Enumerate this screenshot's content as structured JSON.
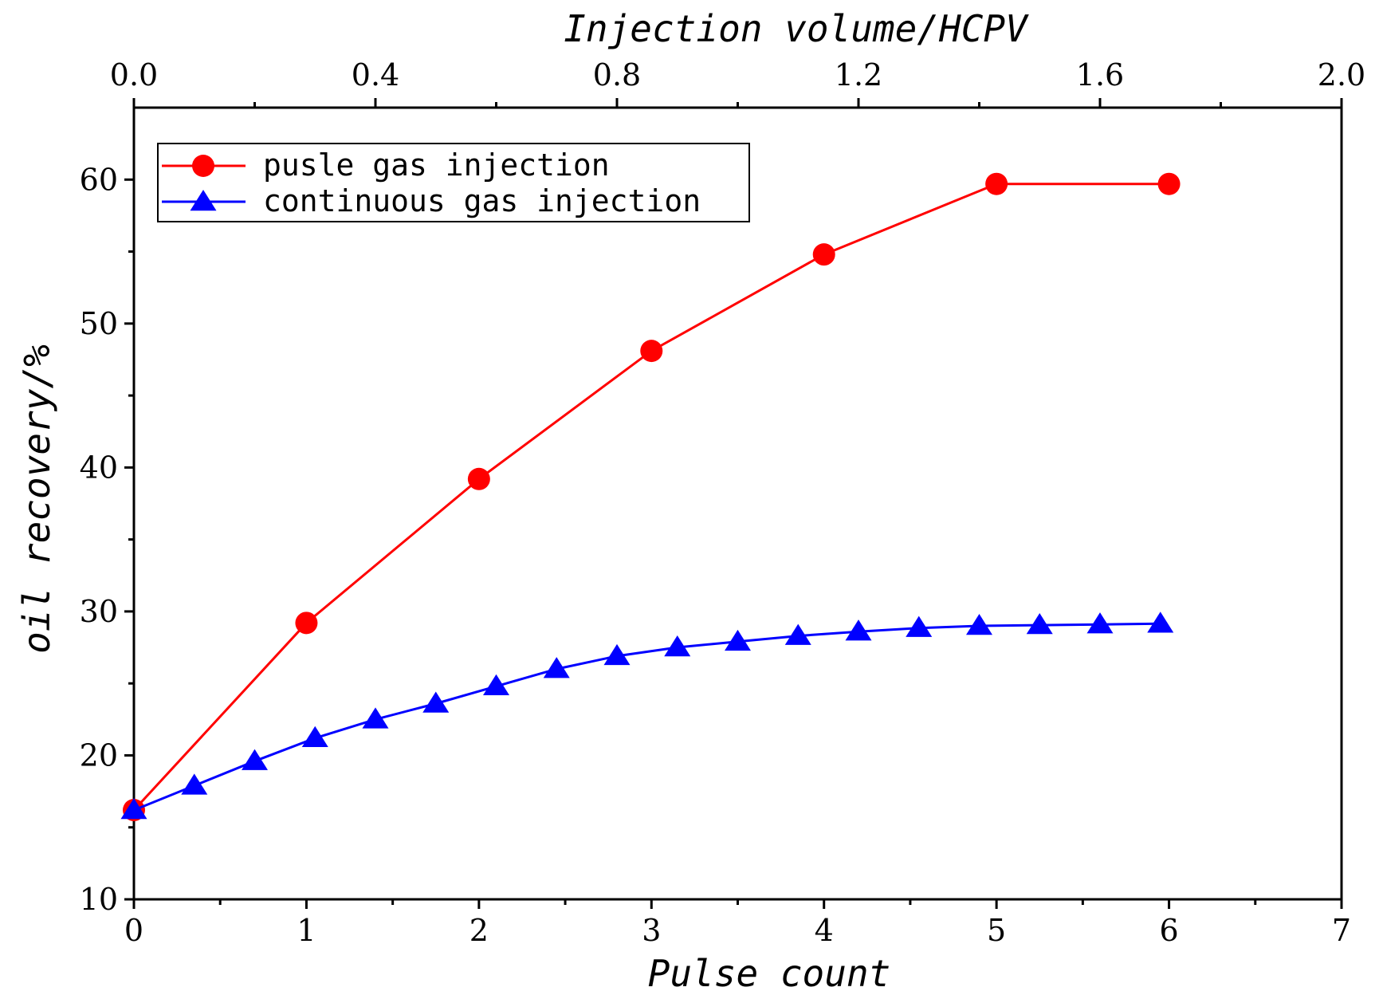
{
  "chart_data": {
    "type": "line",
    "xlabel": "Pulse count",
    "x2label": "Injection volume/HCPV",
    "ylabel": "oil recovery/%",
    "xlim": [
      0,
      7
    ],
    "x2lim": [
      0.0,
      2.0
    ],
    "ylim": [
      10,
      65
    ],
    "x_ticks": [
      "0",
      "1",
      "2",
      "3",
      "4",
      "5",
      "6",
      "7"
    ],
    "x2_ticks": [
      "0.0",
      "0.4",
      "0.8",
      "1.2",
      "1.6",
      "2.0"
    ],
    "y_ticks": [
      "10",
      "20",
      "30",
      "40",
      "50",
      "60"
    ],
    "legend_position": "top-left",
    "series": [
      {
        "name": "pusle gas injection",
        "color": "#ff0000",
        "marker": "circle",
        "x": [
          0,
          1,
          2,
          3,
          4,
          5,
          6
        ],
        "values": [
          16.2,
          29.2,
          39.2,
          48.1,
          54.8,
          59.7,
          59.7
        ]
      },
      {
        "name": "continuous gas injection",
        "color": "#0000ff",
        "marker": "triangle",
        "x": [
          0,
          0.35,
          0.7,
          1.05,
          1.4,
          1.75,
          2.1,
          2.45,
          2.8,
          3.15,
          3.5,
          3.85,
          4.2,
          4.55,
          4.9,
          5.25,
          5.6,
          5.95
        ],
        "values": [
          16.2,
          17.9,
          19.6,
          21.2,
          22.5,
          23.6,
          24.8,
          26.0,
          26.9,
          27.5,
          27.9,
          28.3,
          28.6,
          28.85,
          29.0,
          29.05,
          29.1,
          29.15
        ]
      }
    ]
  }
}
